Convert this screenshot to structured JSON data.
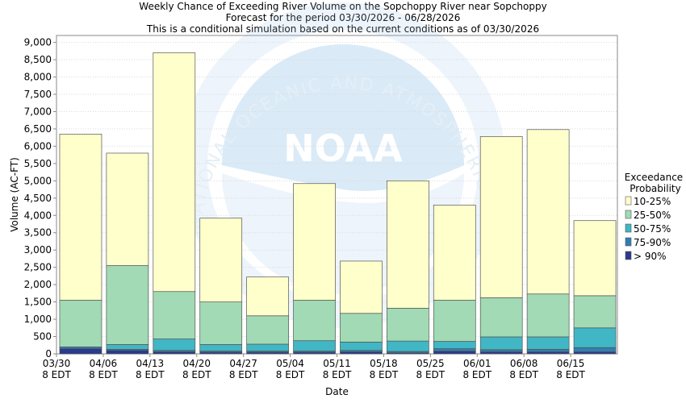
{
  "chart_data": {
    "type": "bar",
    "stacked": true,
    "title": [
      "Weekly Chance of Exceeding River Volume on the Sopchoppy River near Sopchoppy",
      "Forecast for the period 03/30/2026 - 06/28/2026",
      "This is a conditional simulation based on the current conditions as of 03/30/2026"
    ],
    "xlabel": "Date",
    "ylabel": "Volume (AC-FT)",
    "ylim": [
      0,
      9200
    ],
    "yticks": [
      0,
      500,
      1000,
      1500,
      2000,
      2500,
      3000,
      3500,
      4000,
      4500,
      5000,
      5500,
      6000,
      6500,
      7000,
      7500,
      8000,
      8500,
      9000
    ],
    "ytick_labels": [
      "0",
      "500",
      "1,000",
      "1,500",
      "2,000",
      "2,500",
      "3,000",
      "3,500",
      "4,000",
      "4,500",
      "5,000",
      "5,500",
      "6,000",
      "6,500",
      "7,000",
      "7,500",
      "8,000",
      "8,500",
      "9,000"
    ],
    "grid": true,
    "xtick_labels": [
      [
        "03/30",
        "8 EDT"
      ],
      [
        "04/06",
        "8 EDT"
      ],
      [
        "04/13",
        "8 EDT"
      ],
      [
        "04/20",
        "8 EDT"
      ],
      [
        "04/27",
        "8 EDT"
      ],
      [
        "05/04",
        "8 EDT"
      ],
      [
        "05/11",
        "8 EDT"
      ],
      [
        "05/18",
        "8 EDT"
      ],
      [
        "05/25",
        "8 EDT"
      ],
      [
        "06/01",
        "8 EDT"
      ],
      [
        "06/08",
        "8 EDT"
      ],
      [
        "06/15",
        "8 EDT"
      ]
    ],
    "num_weeks": 12,
    "bands": [
      {
        "name": "> 90%",
        "color": "#2a3a8c"
      },
      {
        "name": "75-90%",
        "color": "#2f7fb3"
      },
      {
        "name": "50-75%",
        "color": "#41b6c4"
      },
      {
        "name": "25-50%",
        "color": "#a1dab4"
      },
      {
        "name": "10-25%",
        "color": "#ffffcc"
      }
    ],
    "weeks": [
      {
        "levels": [
          150,
          200,
          200,
          1550,
          6350
        ]
      },
      {
        "levels": [
          100,
          130,
          270,
          2550,
          5800
        ]
      },
      {
        "levels": [
          60,
          100,
          430,
          1800,
          8700
        ]
      },
      {
        "levels": [
          50,
          80,
          270,
          1500,
          3920
        ]
      },
      {
        "levels": [
          50,
          80,
          280,
          1100,
          2220
        ]
      },
      {
        "levels": [
          50,
          80,
          380,
          1550,
          4920
        ]
      },
      {
        "levels": [
          60,
          100,
          340,
          1170,
          2680
        ]
      },
      {
        "levels": [
          30,
          70,
          370,
          1320,
          5000
        ]
      },
      {
        "levels": [
          80,
          150,
          360,
          1550,
          4300
        ]
      },
      {
        "levels": [
          60,
          120,
          490,
          1620,
          6280
        ]
      },
      {
        "levels": [
          60,
          130,
          490,
          1730,
          6480
        ]
      },
      {
        "levels": [
          60,
          180,
          750,
          1680,
          3850
        ]
      }
    ],
    "legend": {
      "title": [
        "Exceedance",
        "Probability"
      ],
      "position": "right",
      "items": [
        {
          "label": "10-25%",
          "color": "#ffffcc"
        },
        {
          "label": "25-50%",
          "color": "#a1dab4"
        },
        {
          "label": "50-75%",
          "color": "#41b6c4"
        },
        {
          "label": "75-90%",
          "color": "#2f7fb3"
        },
        {
          "label": "> 90%",
          "color": "#2a3a8c"
        }
      ]
    },
    "watermark": {
      "logo_text": "NOAA",
      "arc_text": "NATIONAL OCEANIC AND ATMOSPHERIC ADMINISTRATION"
    }
  }
}
